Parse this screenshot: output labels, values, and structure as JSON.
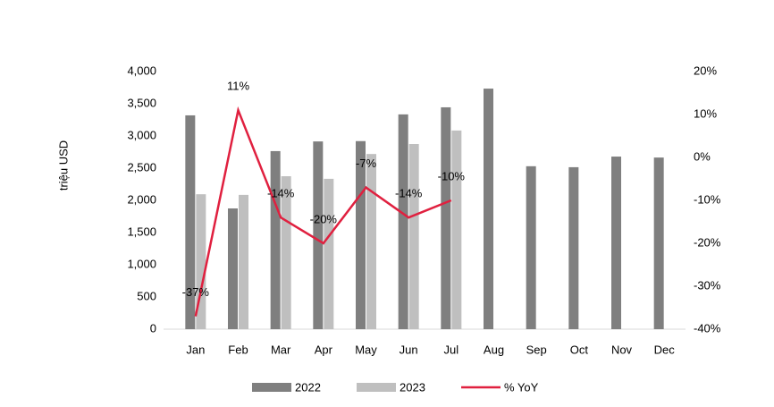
{
  "chart_data": {
    "type": "bar_line",
    "y_label": "triệu USD",
    "categories": [
      "Jan",
      "Feb",
      "Mar",
      "Apr",
      "May",
      "Jun",
      "Jul",
      "Aug",
      "Sep",
      "Oct",
      "Nov",
      "Dec"
    ],
    "series": [
      {
        "name": "2022",
        "type": "bar",
        "color": "#7f7f7f",
        "values": [
          3320,
          1875,
          2765,
          2915,
          2920,
          3335,
          3445,
          3735,
          2530,
          2515,
          2680,
          2665
        ]
      },
      {
        "name": "2023",
        "type": "bar",
        "color": "#bfbfbf",
        "values": [
          2095,
          2085,
          2375,
          2335,
          2720,
          2875,
          3085,
          null,
          null,
          null,
          null,
          null
        ]
      },
      {
        "name": "% YoY",
        "type": "line",
        "axis": "y2",
        "color": "#e0203f",
        "values": [
          -37,
          11,
          -14,
          -20,
          -7,
          -14,
          -10,
          null,
          null,
          null,
          null,
          null
        ],
        "value_labels": [
          "-37%",
          "11%",
          "-14%",
          "-20%",
          "-7%",
          "-14%",
          "-10%",
          null,
          null,
          null,
          null,
          null
        ]
      }
    ],
    "ylim": [
      0,
      4000
    ],
    "yticks": [
      0,
      500,
      {
        "value": 1000,
        "label": "1,000"
      },
      {
        "value": 1500,
        "label": "1,500"
      },
      {
        "value": 2000,
        "label": "2,000"
      },
      {
        "value": 2500,
        "label": "2,500"
      },
      {
        "value": 3000,
        "label": "3,000"
      },
      {
        "value": 3500,
        "label": "3,500"
      },
      {
        "value": 4000,
        "label": "4,000"
      }
    ],
    "y2lim": [
      -40,
      20
    ],
    "y2ticks": [
      {
        "value": -40,
        "label": "-40%"
      },
      {
        "value": -30,
        "label": "-30%"
      },
      {
        "value": -20,
        "label": "-20%"
      },
      {
        "value": -10,
        "label": "-10%"
      },
      {
        "value": 0,
        "label": "0%"
      },
      {
        "value": 10,
        "label": "10%"
      },
      {
        "value": 20,
        "label": "20%"
      }
    ],
    "grid": false
  }
}
